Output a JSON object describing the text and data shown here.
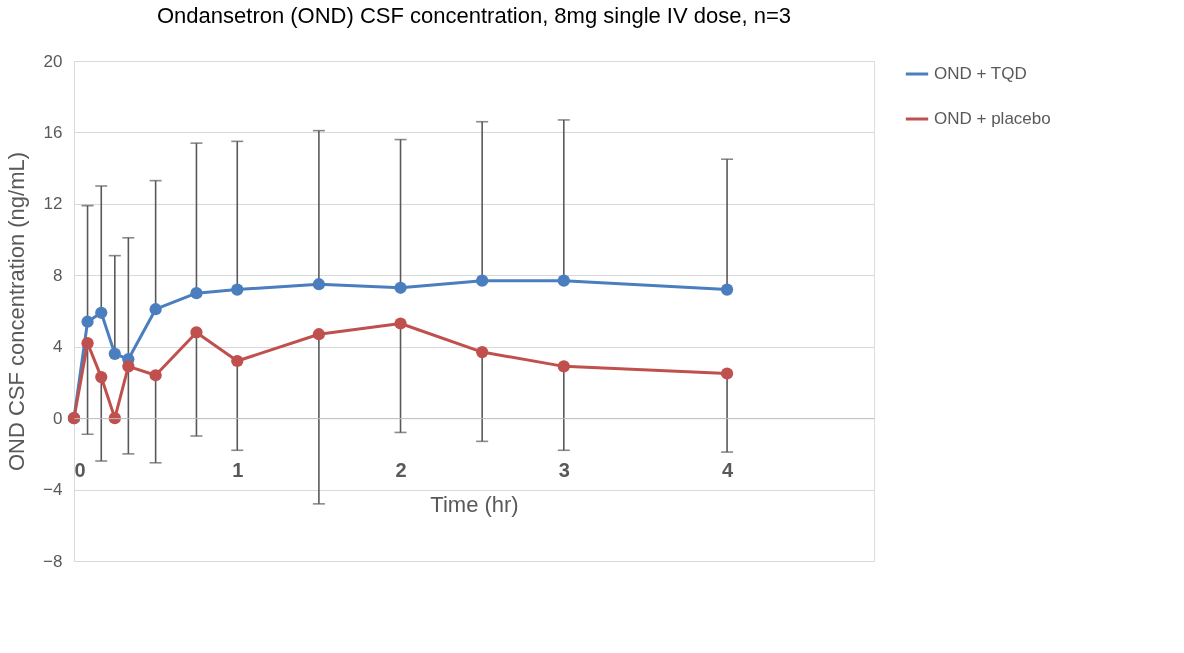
{
  "chart_data": {
    "type": "line",
    "title": "Ondansetron (OND) CSF concentration, 8mg single IV dose, n=3",
    "xlabel": "Time (hr)",
    "ylabel": "OND CSF concentration (ng/mL)",
    "x": [
      0,
      0.083,
      0.167,
      0.25,
      0.333,
      0.5,
      0.75,
      1,
      1.5,
      2,
      2.5,
      3,
      4
    ],
    "xlim": [
      0,
      4.9
    ],
    "xticks": [
      0,
      1,
      2,
      3,
      4
    ],
    "ylim": [
      -8,
      20
    ],
    "yticks": [
      -8,
      -4,
      0,
      4,
      8,
      12,
      16,
      20
    ],
    "series": [
      {
        "name": "OND + TQD",
        "color": "#4a7ebf",
        "values": [
          0,
          5.4,
          5.9,
          3.6,
          3.3,
          6.1,
          7.0,
          7.2,
          7.5,
          7.3,
          7.7,
          7.7,
          7.2
        ],
        "errors": [
          null,
          [
            5.4,
            11.9
          ],
          [
            5.9,
            13.0
          ],
          [
            3.6,
            9.1
          ],
          [
            3.3,
            10.1
          ],
          [
            6.1,
            13.3
          ],
          [
            7.0,
            15.4
          ],
          [
            7.2,
            15.5
          ],
          [
            7.5,
            16.1
          ],
          [
            7.3,
            15.6
          ],
          [
            7.7,
            16.6
          ],
          [
            7.7,
            16.7
          ],
          [
            7.2,
            14.5
          ]
        ]
      },
      {
        "name": "OND + placebo",
        "color": "#c0504d",
        "values": [
          0,
          4.2,
          2.3,
          0,
          2.9,
          2.4,
          4.8,
          3.2,
          4.7,
          5.3,
          3.7,
          2.9,
          2.5
        ],
        "errors": [
          null,
          [
            -0.9,
            4.2
          ],
          [
            -2.4,
            2.3
          ],
          null,
          [
            -2.0,
            2.9
          ],
          [
            -2.5,
            2.4
          ],
          [
            -1.0,
            4.8
          ],
          [
            -1.8,
            3.2
          ],
          [
            -4.8,
            4.7
          ],
          [
            -0.8,
            5.3
          ],
          [
            -1.3,
            3.7
          ],
          [
            -1.8,
            2.9
          ],
          [
            -1.9,
            2.5
          ]
        ]
      }
    ],
    "grid": "y",
    "legend": "right",
    "marker": "circle",
    "line_style": "solid"
  }
}
